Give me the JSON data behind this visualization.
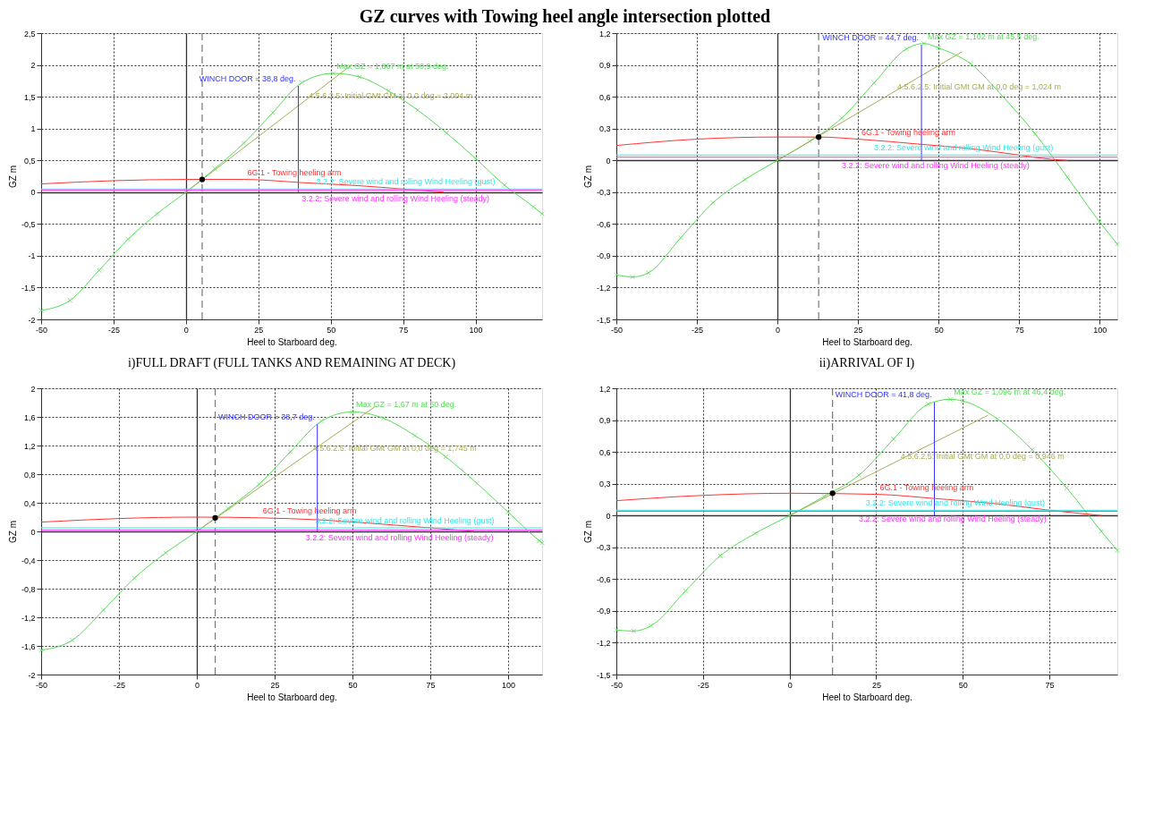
{
  "chart_data": [
    {
      "type": "line",
      "title": "GZ curves with Towing heel angle intersection plotted",
      "xlabel": "Heel to Starboard   deg.",
      "ylabel": "GZ  m",
      "xlim": [
        -50,
        123
      ],
      "xticks": [
        -50,
        -25,
        0,
        25,
        50,
        75,
        100
      ],
      "ylim": [
        -2,
        2.5
      ],
      "yticks": [
        -2,
        {
          "value": -1.5,
          "label": "-1,5"
        },
        -1,
        {
          "value": -0.5,
          "label": "-0,5"
        },
        0,
        {
          "value": 0.5,
          "label": "0,5"
        },
        1,
        {
          "value": 1.5,
          "label": "1,5"
        },
        2,
        {
          "value": 2.5,
          "label": "2,5"
        }
      ],
      "grid": true,
      "series": [
        {
          "color": "#55dd55",
          "marker": "cross",
          "x": [
            -50,
            -40,
            -30,
            -20,
            -10,
            0,
            10,
            20,
            30,
            40,
            50.9,
            60,
            70,
            80,
            90,
            100,
            110,
            120,
            123
          ],
          "values": [
            -1.86,
            -1.7,
            -1.23,
            -0.74,
            -0.34,
            0,
            0.37,
            0.77,
            1.25,
            1.72,
            1.867,
            1.81,
            1.59,
            1.29,
            0.93,
            0.53,
            0.11,
            -0.23,
            -0.34
          ]
        },
        {
          "color": "#aaaa55",
          "x": [
            0,
            57.3
          ],
          "values": [
            0,
            2.004
          ]
        },
        {
          "color": "#3333ff",
          "x": [
            38.8,
            38.8
          ],
          "values": [
            0,
            1.67
          ]
        },
        {
          "color": "#ff3333",
          "x": [
            -50,
            -25,
            0,
            20,
            40,
            60,
            75,
            89
          ],
          "values": [
            0.13,
            0.18,
            0.2,
            0.2,
            0.15,
            0.1,
            0.05,
            0
          ]
        },
        {
          "color": "#ff33ff",
          "x": [
            -50,
            123
          ],
          "values": [
            0.03,
            0.03
          ]
        },
        {
          "color": "#33e8e8",
          "x": [
            -50,
            123
          ],
          "values": [
            0.05,
            0.05
          ]
        },
        {
          "type": "scatter",
          "color": "#000000",
          "x": [
            5.6
          ],
          "values": [
            0.2
          ]
        }
      ],
      "ref_lines": [
        {
          "axis": "x",
          "value": 5.6,
          "color": "#777777",
          "line_style": "dashed"
        }
      ],
      "annotations": [
        {
          "text": "Max GZ = 1,867 m at 50,9 deg.",
          "x": 50.9,
          "y": 1.867
        },
        {
          "text": "4.5.6.2.5: Initial GMt GM at 0,0 deg = 2,004 m",
          "x": 40,
          "y": 1.399
        },
        {
          "text": "WINCH DOOR = 38,8 deg.",
          "x": 38.8,
          "y": 1.67
        },
        {
          "text": "6G.1 - Towing heeling arm",
          "x": 20,
          "y": 0.2
        },
        {
          "text": "3.2.2: Severe wind and rolling Wind Heeling (steady)",
          "x": 40,
          "y": 0.03
        },
        {
          "text": "3.2.2: Severe wind and rolling Wind Heeling (gust)",
          "x": 45,
          "y": 0.05
        },
        "i)FULL DRAFT (FULL TANKS AND REMAINING AT DECK)"
      ]
    },
    {
      "type": "line",
      "xlabel": "Heel to Starboard   deg.",
      "ylabel": "GZ  m",
      "xlim": [
        -50,
        105.5
      ],
      "xticks": [
        -50,
        -25,
        0,
        25,
        50,
        75,
        100
      ],
      "ylim": [
        -1.5,
        1.2
      ],
      "yticks": [
        {
          "value": -1.5,
          "label": "-1,5"
        },
        {
          "value": -1.2,
          "label": "-1,2"
        },
        {
          "value": -0.9,
          "label": "-0,9"
        },
        {
          "value": -0.6,
          "label": "-0,6"
        },
        {
          "value": -0.3,
          "label": "-0,3"
        },
        0,
        {
          "value": 0.3,
          "label": "0,3"
        },
        {
          "value": 0.6,
          "label": "0,6"
        },
        {
          "value": 0.9,
          "label": "0,9"
        },
        {
          "value": 1.2,
          "label": "1,2"
        }
      ],
      "grid": true,
      "series": [
        {
          "color": "#55dd55",
          "marker": "cross",
          "x": [
            -50,
            -45,
            -40,
            -30,
            -20,
            -10,
            0,
            10,
            20,
            30,
            40,
            45.5,
            50,
            60,
            70,
            80,
            90,
            100,
            105.5
          ],
          "values": [
            -1.08,
            -1.1,
            -1.06,
            -0.73,
            -0.4,
            -0.18,
            0,
            0.18,
            0.4,
            0.73,
            1.05,
            1.102,
            1.06,
            0.91,
            0.6,
            0.25,
            -0.16,
            -0.58,
            -0.79
          ]
        },
        {
          "color": "#aaaa55",
          "x": [
            0,
            57.3
          ],
          "values": [
            0,
            1.024
          ]
        },
        {
          "color": "#3333ff",
          "x": [
            44.7,
            44.7
          ],
          "values": [
            0,
            1.09
          ]
        },
        {
          "color": "#ff3333",
          "x": [
            -50,
            -25,
            0,
            12.8,
            25,
            45,
            60,
            75,
            85,
            90
          ],
          "values": [
            0.14,
            0.2,
            0.22,
            0.22,
            0.2,
            0.15,
            0.11,
            0.05,
            0.01,
            0
          ]
        },
        {
          "color": "#ff33ff",
          "x": [
            -50,
            105.5
          ],
          "values": [
            0.03,
            0.03
          ]
        },
        {
          "color": "#33e8e8",
          "x": [
            -50,
            105.5
          ],
          "values": [
            0.05,
            0.05
          ]
        },
        {
          "type": "scatter",
          "color": "#000000",
          "x": [
            12.8
          ],
          "values": [
            0.22
          ]
        }
      ],
      "ref_lines": [
        {
          "axis": "x",
          "value": 12.8,
          "color": "#777777",
          "line_style": "dashed"
        }
      ],
      "annotations": [
        {
          "text": "Max GZ = 1,102 m at 45,5 deg.",
          "x": 45.5,
          "y": 1.102
        },
        {
          "text": "4.5.6.2.5: Initial GMt GM at 0,0 deg = 1,024 m",
          "x": 35,
          "y": 0.625
        },
        {
          "text": "WINCH DOOR = 44,7 deg.",
          "x": 44.7,
          "y": 1.09
        },
        {
          "text": "6G.1 - Towing heeling arm",
          "x": 25,
          "y": 0.2
        },
        {
          "text": "3.2.2: Severe wind and rolling Wind Heeling (steady)",
          "x": 20,
          "y": 0.03
        },
        {
          "text": "3.2.2: Severe wind and rolling Wind Heeling (gust)",
          "x": 30,
          "y": 0.05
        },
        "ii)ARRIVAL OF I)"
      ]
    },
    {
      "type": "line",
      "xlabel": "Heel to Starboard   deg.",
      "ylabel": "GZ  m",
      "xlim": [
        -50,
        110.9
      ],
      "xticks": [
        -50,
        -25,
        0,
        25,
        50,
        75,
        100
      ],
      "ylim": [
        -2,
        2
      ],
      "yticks": [
        -2,
        {
          "value": -1.6,
          "label": "-1,6"
        },
        {
          "value": -1.2,
          "label": "-1,2"
        },
        {
          "value": -0.8,
          "label": "-0,8"
        },
        {
          "value": -0.4,
          "label": "-0,4"
        },
        0,
        {
          "value": 0.4,
          "label": "0,4"
        },
        {
          "value": 0.8,
          "label": "0,8"
        },
        {
          "value": 1.2,
          "label": "1,2"
        },
        {
          "value": 1.6,
          "label": "1,6"
        },
        2
      ],
      "grid": true,
      "series": [
        {
          "color": "#55dd55",
          "marker": "cross",
          "x": [
            -50,
            -40,
            -30,
            -20,
            -10,
            0,
            10,
            20,
            30,
            40,
            50,
            60,
            70,
            80,
            90,
            100,
            110,
            110.9
          ],
          "values": [
            -1.66,
            -1.52,
            -1.1,
            -0.65,
            -0.3,
            0,
            0.32,
            0.66,
            1.11,
            1.54,
            1.67,
            1.58,
            1.34,
            1.04,
            0.67,
            0.27,
            -0.13,
            -0.16
          ]
        },
        {
          "color": "#aaaa55",
          "x": [
            0,
            57.3
          ],
          "values": [
            0,
            1.745
          ]
        },
        {
          "color": "#3333ff",
          "x": [
            38.7,
            38.7
          ],
          "values": [
            0,
            1.5
          ]
        },
        {
          "color": "#ff3333",
          "x": [
            -50,
            -25,
            0,
            20,
            40,
            60,
            75,
            89
          ],
          "values": [
            0.13,
            0.18,
            0.2,
            0.19,
            0.16,
            0.1,
            0.05,
            0
          ]
        },
        {
          "color": "#ff33ff",
          "x": [
            -50,
            110.9
          ],
          "values": [
            0.02,
            0.02
          ]
        },
        {
          "color": "#33e8e8",
          "x": [
            -50,
            110.9
          ],
          "values": [
            0.05,
            0.05
          ]
        },
        {
          "type": "scatter",
          "color": "#000000",
          "x": [
            5.9
          ],
          "values": [
            0.19
          ]
        }
      ],
      "ref_lines": [
        {
          "axis": "x",
          "value": 5.9,
          "color": "#777777",
          "line_style": "dashed"
        }
      ],
      "annotations": [
        {
          "text": "Max GZ = 1,67 m at 50 deg.",
          "x": 50,
          "y": 1.67
        },
        {
          "text": "4.5.6.2.5: Initial GMt GM at 0,0 deg = 1,745 m",
          "x": 35,
          "y": 1.066
        },
        {
          "text": "WINCH DOOR = 38,7 deg.",
          "x": 38.7,
          "y": 1.5
        },
        {
          "text": "6G.1 - Towing heeling arm",
          "x": 20,
          "y": 0.19
        },
        {
          "text": "3.2.2: Severe wind and rolling Wind Heeling (steady)",
          "x": 35,
          "y": 0.02
        },
        {
          "text": "3.2.2: Severe wind and rolling Wind Heeling (gust)",
          "x": 38,
          "y": 0.05
        }
      ]
    },
    {
      "type": "line",
      "xlabel": "Heel to Starboard   deg.",
      "ylabel": "GZ  m",
      "xlim": [
        -50,
        94.6
      ],
      "xticks": [
        -50,
        -25,
        0,
        25,
        50,
        75
      ],
      "ylim": [
        -1.5,
        1.2
      ],
      "yticks": [
        {
          "value": -1.5,
          "label": "-1,5"
        },
        {
          "value": -1.2,
          "label": "-1,2"
        },
        {
          "value": -0.9,
          "label": "-0,9"
        },
        {
          "value": -0.6,
          "label": "-0,6"
        },
        {
          "value": -0.3,
          "label": "-0,3"
        },
        0,
        {
          "value": 0.3,
          "label": "0,3"
        },
        {
          "value": 0.6,
          "label": "0,6"
        },
        {
          "value": 0.9,
          "label": "0,9"
        },
        {
          "value": 1.2,
          "label": "1,2"
        }
      ],
      "grid": true,
      "series": [
        {
          "color": "#55dd55",
          "marker": "cross",
          "x": [
            -50,
            -45,
            -40,
            -30,
            -20,
            -10,
            0,
            10,
            20,
            30,
            40,
            46.4,
            50,
            60,
            70,
            80,
            90,
            94.6
          ],
          "values": [
            -1.08,
            -1.09,
            -1.04,
            -0.71,
            -0.38,
            -0.17,
            0,
            0.18,
            0.38,
            0.72,
            1.05,
            1.096,
            1.08,
            0.91,
            0.62,
            0.26,
            -0.15,
            -0.33
          ]
        },
        {
          "color": "#aaaa55",
          "x": [
            0,
            57.3
          ],
          "values": [
            0,
            0.946
          ]
        },
        {
          "color": "#3333ff",
          "x": [
            41.8,
            41.8
          ],
          "values": [
            0,
            1.07
          ]
        },
        {
          "color": "#ff3333",
          "x": [
            -50,
            -25,
            0,
            25,
            42,
            60,
            75,
            90
          ],
          "values": [
            0.14,
            0.19,
            0.21,
            0.2,
            0.16,
            0.11,
            0.05,
            0
          ]
        },
        {
          "color": "#ff33ff",
          "x": [
            -50,
            94.6
          ],
          "values": [
            0.04,
            0.04
          ]
        },
        {
          "color": "#33e8e8",
          "x": [
            -50,
            94.6
          ],
          "values": [
            0.05,
            0.05
          ]
        },
        {
          "type": "scatter",
          "color": "#000000",
          "x": [
            12.4
          ],
          "values": [
            0.21
          ]
        }
      ],
      "ref_lines": [
        {
          "axis": "x",
          "value": 12.4,
          "color": "#777777",
          "line_style": "dashed"
        }
      ],
      "annotations": [
        {
          "text": "Max GZ = 1,096 m at 46,4 deg.",
          "x": 46.4,
          "y": 1.096
        },
        {
          "text": "4.5.6.2.5: Initial GMt GM at 0,0 deg = 0,946 m",
          "x": 30,
          "y": 0.495
        },
        {
          "text": "WINCH DOOR = 41,8 deg.",
          "x": 41.8,
          "y": 1.07
        },
        {
          "text": "6G.1 - Towing heeling arm",
          "x": 25,
          "y": 0.2
        },
        {
          "text": "3.2.2: Severe wind and rolling Wind Heeling (steady)",
          "x": 20,
          "y": 0.04
        },
        {
          "text": "3.2.2: Severe wind and rolling Wind Heeling (gust)",
          "x": 22,
          "y": 0.05
        }
      ]
    }
  ]
}
